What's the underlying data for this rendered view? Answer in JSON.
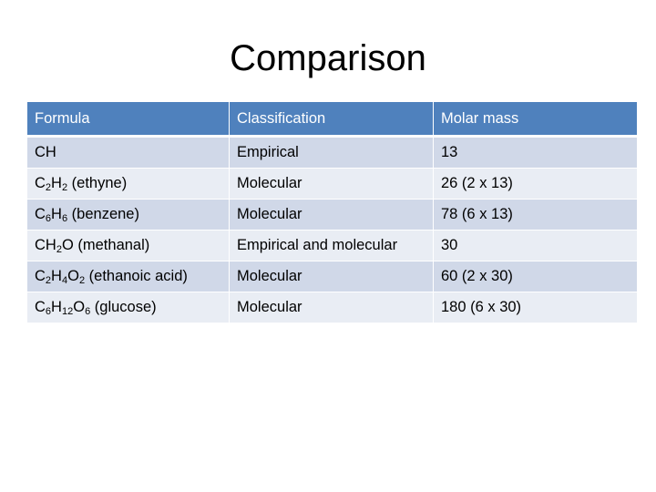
{
  "title": "Comparison",
  "table": {
    "headers": [
      "Formula",
      "Classification",
      "Molar mass"
    ],
    "rows": [
      {
        "formula": [
          {
            "t": "CH"
          }
        ],
        "formula_text": "CH",
        "classification": "Empirical",
        "molar_mass": "13"
      },
      {
        "formula": [
          {
            "t": "C"
          },
          {
            "sub": "2"
          },
          {
            "t": "H"
          },
          {
            "sub": "2"
          },
          {
            "t": " (ethyne)"
          }
        ],
        "formula_text": "C2H2 (ethyne)",
        "classification": "Molecular",
        "molar_mass": "26 (2 x 13)"
      },
      {
        "formula": [
          {
            "t": "C"
          },
          {
            "sub": "6"
          },
          {
            "t": "H"
          },
          {
            "sub": "6"
          },
          {
            "t": " (benzene)"
          }
        ],
        "formula_text": "C6H6 (benzene)",
        "classification": "Molecular",
        "molar_mass": "78 (6 x 13)"
      },
      {
        "formula": [
          {
            "t": "CH"
          },
          {
            "sub": "2"
          },
          {
            "t": "O (methanal)"
          }
        ],
        "formula_text": "CH2O (methanal)",
        "classification": "Empirical and molecular",
        "molar_mass": "30"
      },
      {
        "formula": [
          {
            "t": "C"
          },
          {
            "sub": "2"
          },
          {
            "t": "H"
          },
          {
            "sub": "4"
          },
          {
            "t": "O"
          },
          {
            "sub": "2"
          },
          {
            "t": " (ethanoic acid)"
          }
        ],
        "formula_text": "C2H4O2 (ethanoic acid)",
        "classification": "Molecular",
        "molar_mass": "60 (2 x 30)"
      },
      {
        "formula": [
          {
            "t": "C"
          },
          {
            "sub": "6"
          },
          {
            "t": "H"
          },
          {
            "sub": "12"
          },
          {
            "t": "O"
          },
          {
            "sub": "6"
          },
          {
            "t": " (glucose)"
          }
        ],
        "formula_text": "C6H12O6 (glucose)",
        "classification": "Molecular",
        "molar_mass": "180 (6 x 30)"
      }
    ]
  },
  "colors": {
    "header_bg": "#4f81bd",
    "row_odd_bg": "#d0d8e8",
    "row_even_bg": "#e9edf4"
  }
}
